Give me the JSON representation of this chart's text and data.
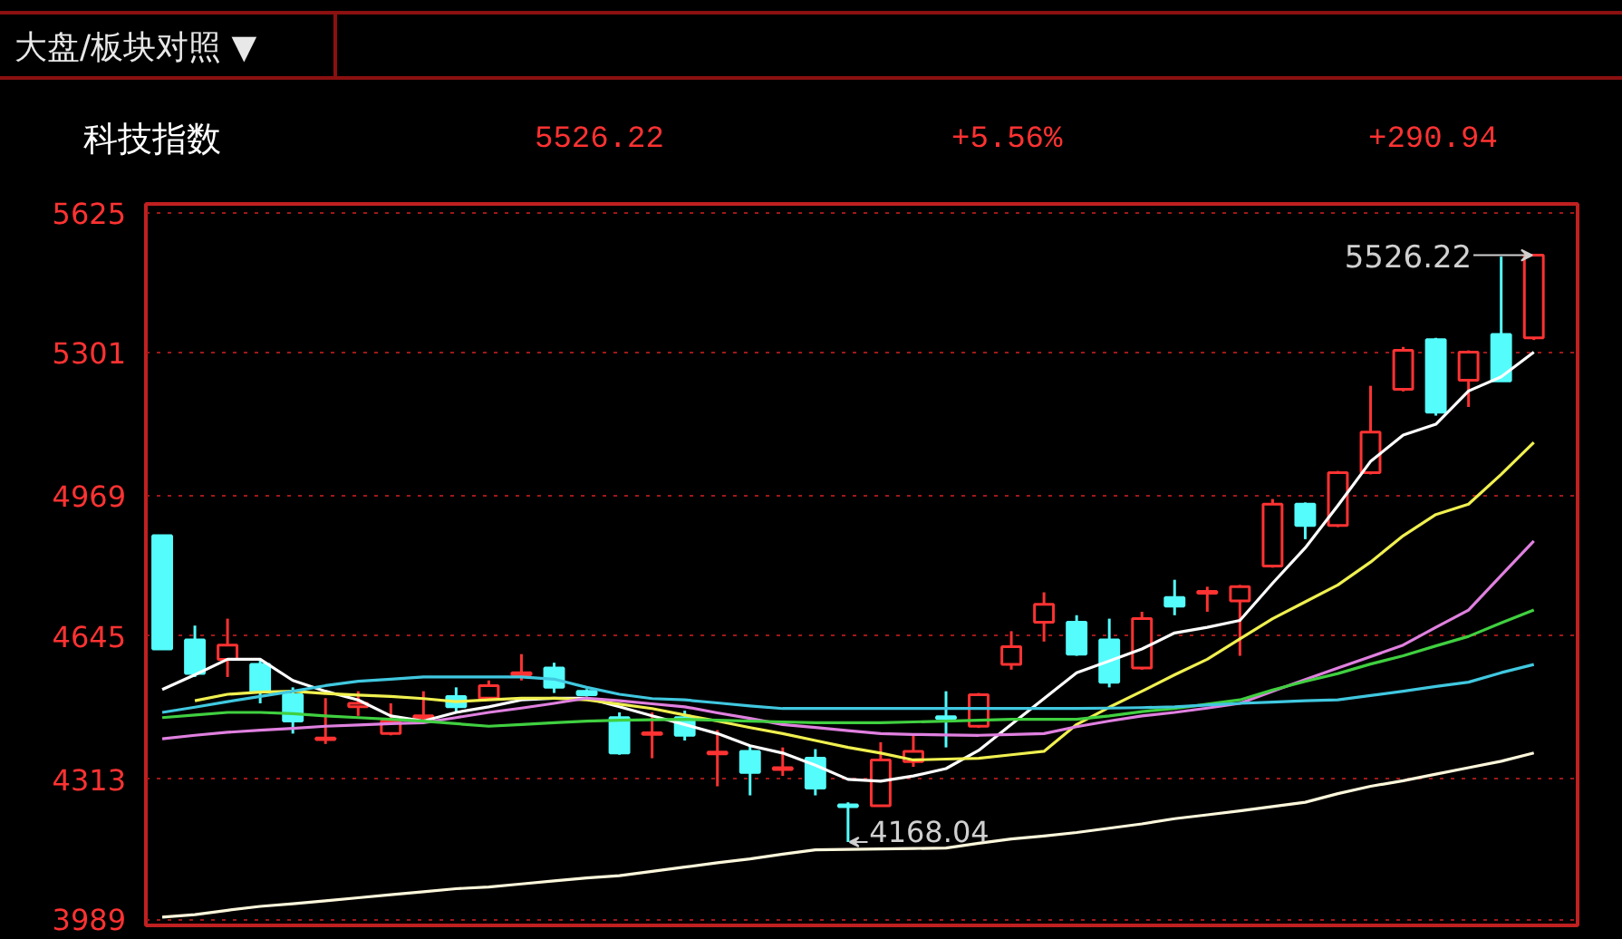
{
  "chart_data": {
    "type": "candlestick",
    "title": "科技指数",
    "annotations": [
      "大盘/板块对照 ▼",
      "5526.22",
      "+5.56%",
      "+290.94",
      "5526.22",
      "4168.04"
    ],
    "categories": [
      null,
      null,
      null,
      null,
      null,
      null,
      null,
      null,
      null,
      null,
      null,
      null,
      null,
      null,
      null,
      null,
      null,
      null,
      null,
      null,
      null,
      null,
      null,
      null,
      null,
      null,
      null,
      null,
      null,
      null,
      null,
      null,
      null,
      null,
      null,
      null,
      null,
      null,
      null,
      null,
      null,
      null,
      null
    ],
    "ohlc": [
      [
        4877,
        4877,
        4615,
        4615
      ],
      [
        4636,
        4669,
        4550,
        4558
      ],
      [
        4591,
        4685,
        4550,
        4624
      ],
      [
        4579,
        4591,
        4489,
        4517
      ],
      [
        4509,
        4526,
        4419,
        4448
      ],
      [
        4405,
        4501,
        4395,
        4409
      ],
      [
        4481,
        4517,
        4460,
        4489
      ],
      [
        4419,
        4489,
        4415,
        4448
      ],
      [
        4456,
        4517,
        4448,
        4460
      ],
      [
        4505,
        4526,
        4468,
        4481
      ],
      [
        4501,
        4542,
        4501,
        4530
      ],
      [
        4555,
        4603,
        4542,
        4560
      ],
      [
        4571,
        4583,
        4513,
        4526
      ],
      [
        4517,
        4522,
        4505,
        4509
      ],
      [
        4456,
        4468,
        4370,
        4374
      ],
      [
        4417,
        4468,
        4362,
        4421
      ],
      [
        4456,
        4472,
        4403,
        4415
      ],
      [
        4372,
        4427,
        4297,
        4376
      ],
      [
        4378,
        4391,
        4276,
        4329
      ],
      [
        4336,
        4387,
        4321,
        4340
      ],
      [
        4362,
        4383,
        4276,
        4293
      ],
      [
        4254,
        4260,
        4168.04,
        4250
      ],
      [
        4252,
        4399,
        4252,
        4358
      ],
      [
        4354,
        4415,
        4342,
        4378
      ],
      [
        4458,
        4517,
        4387,
        4454
      ],
      [
        4436,
        4513,
        4432,
        4509
      ],
      [
        4579,
        4656,
        4567,
        4620
      ],
      [
        4677,
        4746,
        4632,
        4718
      ],
      [
        4677,
        4693,
        4599,
        4603
      ],
      [
        4636,
        4685,
        4526,
        4538
      ],
      [
        4571,
        4701,
        4567,
        4685
      ],
      [
        4734,
        4775,
        4693,
        4714
      ],
      [
        4744,
        4759,
        4701,
        4748
      ],
      [
        4726,
        4763,
        4599,
        4759
      ],
      [
        4807,
        4962,
        4803,
        4950
      ],
      [
        4950,
        4954,
        4869,
        4901
      ],
      [
        4901,
        5027,
        4897,
        5023
      ],
      [
        5023,
        5224,
        5019,
        5117
      ],
      [
        5216,
        5314,
        5211,
        5306
      ],
      [
        5331,
        5335,
        5155,
        5163
      ],
      [
        5237,
        5306,
        5175,
        5302
      ],
      [
        5343,
        5523,
        5235.28,
        5235.28
      ],
      [
        5335,
        5526.22,
        5330,
        5526.22
      ]
    ],
    "colors": [
      "#54fcfc",
      "#54fcfc",
      "#ff3232",
      "#54fcfc",
      "#54fcfc",
      "#ff3232",
      "#ff3232",
      "#ff3232",
      "#ff3232",
      "#54fcfc",
      "#ff3232",
      "#ff3232",
      "#54fcfc",
      "#54fcfc",
      "#54fcfc",
      "#ff3232",
      "#54fcfc",
      "#ff3232",
      "#54fcfc",
      "#ff3232",
      "#54fcfc",
      "#54fcfc",
      "#ff3232",
      "#ff3232",
      "#54fcfc",
      "#ff3232",
      "#ff3232",
      "#ff3232",
      "#54fcfc",
      "#54fcfc",
      "#ff3232",
      "#54fcfc",
      "#ff3232",
      "#ff3232",
      "#ff3232",
      "#54fcfc",
      "#ff3232",
      "#ff3232",
      "#ff3232",
      "#54fcfc",
      "#ff3232",
      "#54fcfc",
      "#ff3232"
    ],
    "series": [
      {
        "type": "line",
        "color": "#ffffff",
        "values": [
          4521,
          4555,
          4591,
          4591,
          4542,
          4517,
          4497,
          4460,
          4448,
          4468,
          4481,
          4497,
          4501,
          4501,
          4481,
          4460,
          4440,
          4419,
          4391,
          4374,
          4346,
          4313,
          4309,
          4321,
          4338,
          4380,
          4440,
          4500,
          4560,
          4587,
          4615,
          4652,
          4665,
          4681,
          4767,
          4849,
          4947,
          5049,
          5110,
          5135,
          5212,
          5245,
          5302
        ]
      },
      {
        "type": "line",
        "color": "#f0f050",
        "values": [
          null,
          4495,
          4510,
          4515,
          4517,
          4512,
          4508,
          4505,
          4500,
          4493,
          4497,
          4501,
          4501,
          4497,
          4487,
          4477,
          4462,
          4448,
          4433,
          4419,
          4403,
          4387,
          4374,
          4358,
          4360,
          4362,
          4370,
          4378,
          4440,
          4480,
          4517,
          4555,
          4591,
          4638,
          4685,
          4724,
          4763,
          4816,
          4877,
          4926,
          4950,
          5019,
          5093
        ]
      },
      {
        "type": "line",
        "color": "#e080e0",
        "values": [
          4407,
          4415,
          4422,
          4427,
          4431,
          4436,
          4439,
          4442,
          4444,
          4456,
          4468,
          4478,
          4489,
          4501,
          4495,
          4488,
          4481,
          4467,
          4454,
          4440,
          4433,
          4426,
          4419,
          4417,
          4416,
          4415,
          4417,
          4419,
          4435,
          4448,
          4460,
          4468,
          4478,
          4489,
          4517,
          4544,
          4571,
          4597,
          4624,
          4665,
          4705,
          4785,
          4865
        ]
      },
      {
        "type": "line",
        "color": "#40d040",
        "values": [
          4456,
          4462,
          4468,
          4468,
          4465,
          4460,
          4456,
          4452,
          4448,
          4442,
          4436,
          4440,
          4444,
          4448,
          4450,
          4451,
          4452,
          4450,
          4448,
          4446,
          4444,
          4444,
          4444,
          4446,
          4448,
          4450,
          4452,
          4452,
          4452,
          4460,
          4470,
          4477,
          4487,
          4497,
          4520,
          4540,
          4558,
          4580,
          4599,
          4622,
          4644,
          4675,
          4705
        ]
      },
      {
        "type": "line",
        "color": "#40c8e0",
        "values": [
          4468,
          4480,
          4493,
          4505,
          4517,
          4530,
          4540,
          4545,
          4550,
          4550,
          4550,
          4550,
          4545,
          4526,
          4510,
          4500,
          4497,
          4490,
          4483,
          4477,
          4477,
          4477,
          4477,
          4477,
          4477,
          4477,
          4477,
          4477,
          4477,
          4478,
          4479,
          4481,
          4485,
          4489,
          4492,
          4495,
          4497,
          4507,
          4517,
          4528,
          4538,
          4560,
          4579
        ]
      },
      {
        "type": "line",
        "color": "#fff8dc",
        "values": [
          3994,
          4000,
          4010,
          4019,
          4025,
          4032,
          4039,
          4046,
          4053,
          4060,
          4064,
          4071,
          4078,
          4085,
          4090,
          4100,
          4110,
          4120,
          4129,
          4140,
          4150,
          4151,
          4152,
          4153,
          4154,
          4165,
          4175,
          4182,
          4190,
          4200,
          4210,
          4222,
          4231,
          4240,
          4250,
          4260,
          4280,
          4297,
          4310,
          4325,
          4340,
          4355,
          4374
        ]
      }
    ],
    "ylim": [
      3975,
      5645
    ],
    "yticks": [
      5625,
      5301,
      4969,
      4645,
      4313,
      3989
    ],
    "grid": "y",
    "tick_labels": "y"
  }
}
